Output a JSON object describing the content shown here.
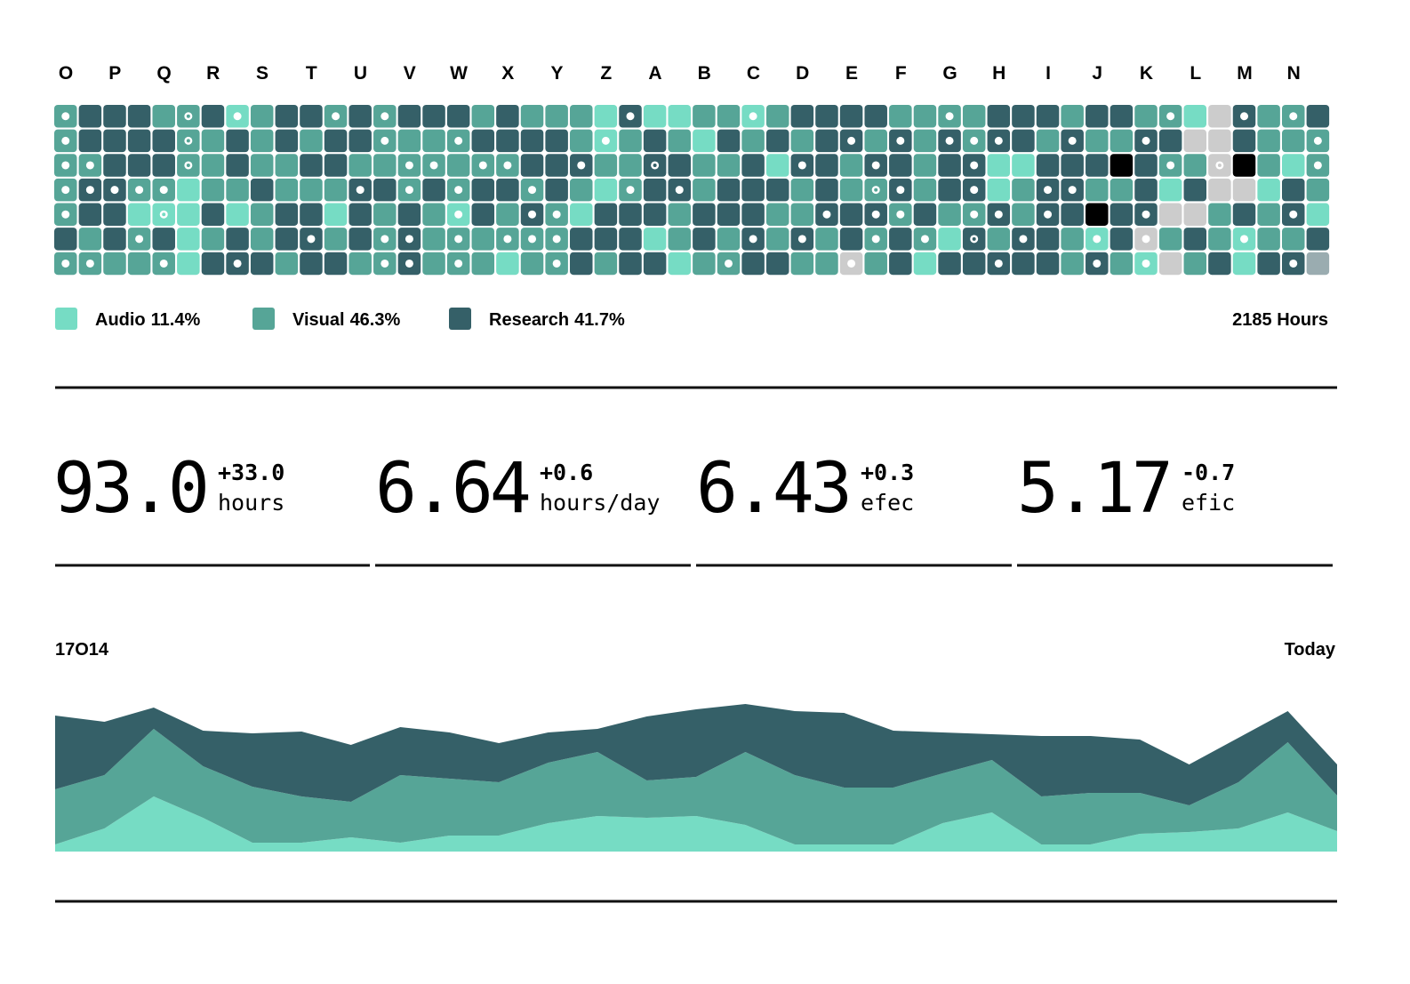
{
  "columns": [
    "O",
    "P",
    "Q",
    "R",
    "S",
    "T",
    "U",
    "V",
    "W",
    "X",
    "Y",
    "Z",
    "A",
    "B",
    "C",
    "D",
    "E",
    "F",
    "G",
    "H",
    "I",
    "J",
    "K",
    "L",
    "M",
    "N"
  ],
  "cell_colors": {
    "a": "#76dcc4",
    "v": "#56a597",
    "r": "#356068",
    "e": "#cccccc",
    "k": "#000000",
    "g": "#9aacb0"
  },
  "grid": {
    "cells": [
      "vrrrvvravrrvrvrrrvrvvvaraavvavrrrrvvvvrrrvrrvvaervvr",
      "vrrrrvvrvrvrrvvvvrrrrvavrvarvrvrrvrvrvrrvrvvrreervvv",
      "vvrrrvvrvvrrvvvvvvvrrrvvrrvvrarrvrrvrraarrrkrvvekvav",
      "vrrvvavvrvvvrrvrvrrvrvavrrvrrrvrvvrvrravrrvvraree arv",
      "vrraaaravrrarvrvarvrvarrrvrrrvvrrrvrvvrvrrkrreevrvra",
      "rvrvravrvrrvrvrvvvvvvrrravrvrvrvrvrvarvrrvarevrvavvr",
      "vvvvvarrrvrrvvrvvvavvrvrravvrrvvevrarrrrrvrvaevrarrg"
    ],
    "dots": [
      "o....c.o...o.o.........o....o.......o........o..o.o.",
      "o....c.......o..o.....o.........o.o.ooo..o..o......o",
      "oo...c........oo.oo..o..c.....o..o...o.......o.c...o",
      "ooooo.......o.o.o..o...o.o.......co..o..oo..........",
      "o...c...........o..oo..........o.oo..oo.o...o.....o.",
      "...o......o..oo.o.ooo.......o.o..o.o.c.o..o.o...o...",
      "oo..o..o.....oo.o...o......o....o.....o...o.o.....o."
    ]
  },
  "legend": [
    {
      "name": "Audio",
      "share": "11.4%",
      "color": "#76dcc4"
    },
    {
      "name": "Visual",
      "share": "46.3%",
      "color": "#56a597"
    },
    {
      "name": "Research",
      "share": "41.7%",
      "color": "#356068"
    }
  ],
  "total": "2185 Hours",
  "stats": [
    {
      "value": "93.0",
      "delta": "+33.0",
      "unit": "hours"
    },
    {
      "value": "6.64",
      "delta": "+0.6",
      "unit": "hours/day"
    },
    {
      "value": "6.43",
      "delta": "+0.3",
      "unit": "efec"
    },
    {
      "value": "5.17",
      "delta": "-0.7",
      "unit": "efic"
    }
  ],
  "chart_data": {
    "type": "stream",
    "start_label": "17O14",
    "end_label": "Today",
    "series": [
      {
        "color": "#76dcc4",
        "values": [
          8,
          26,
          62,
          38,
          10,
          10,
          16,
          10,
          18,
          18,
          32,
          40,
          38,
          40,
          30,
          8,
          8,
          8,
          32,
          44,
          8,
          8,
          20,
          22,
          26,
          44,
          23
        ]
      },
      {
        "color": "#56a597",
        "values": [
          62,
          60,
          76,
          58,
          63,
          52,
          40,
          76,
          64,
          60,
          68,
          72,
          42,
          44,
          82,
          78,
          64,
          64,
          56,
          59,
          54,
          58,
          46,
          30,
          52,
          79,
          40
        ]
      },
      {
        "color": "#356068",
        "values": [
          83,
          60,
          24,
          40,
          60,
          73,
          64,
          54,
          52,
          44,
          34,
          26,
          72,
          76,
          54,
          72,
          84,
          64,
          46,
          29,
          68,
          64,
          60,
          46,
          50,
          35,
          35
        ]
      }
    ]
  }
}
